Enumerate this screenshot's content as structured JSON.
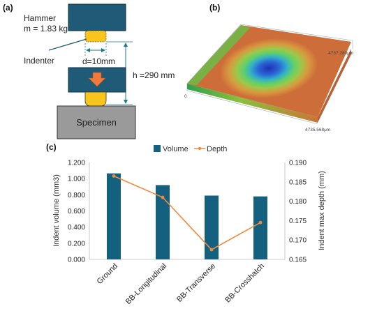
{
  "panels": {
    "a": "(a)",
    "b": "(b)",
    "c": "(c)"
  },
  "diagram": {
    "hammer_label": "Hammer",
    "mass_label": "m = 1.83 kg",
    "indenter_label": "Indenter",
    "diameter_label": "d=10mm",
    "height_label": "h =290 mm",
    "specimen_label": "Specimen",
    "colors": {
      "hammer": "#1f5a77",
      "indenter": "#f7c51d",
      "arrow": "#f07a3e",
      "specimen": "#9a9a9a"
    }
  },
  "surface_plot": {
    "label_y": "4737.280μm",
    "label_x": "4735.568μm",
    "label_origin": "0"
  },
  "chart_data": {
    "type": "bar",
    "categories": [
      "Ground",
      "BB-Longitudinal",
      "BB-Transverse",
      "BB-Crosshatch"
    ],
    "series": [
      {
        "name": "Volume",
        "type": "bar",
        "axis": "left",
        "color": "#14617f",
        "values": [
          1.065,
          0.92,
          0.79,
          0.78
        ]
      },
      {
        "name": "Depth",
        "type": "line",
        "axis": "right",
        "color": "#f08a3e",
        "values": [
          0.1865,
          0.181,
          0.1675,
          0.1745
        ]
      }
    ],
    "ylabel": "Indent volume (mm3)",
    "ylabel_right": "Indent max depth (mm)",
    "ylim": [
      0,
      1.2
    ],
    "ylim_right": [
      0.165,
      0.19
    ],
    "yticks": [
      "0.000",
      "0.200",
      "0.400",
      "0.600",
      "0.800",
      "1.000",
      "1.200"
    ],
    "yticks_right": [
      "0.165",
      "0.170",
      "0.175",
      "0.180",
      "0.185",
      "0.190"
    ],
    "legend_position": "top",
    "grid": false
  }
}
